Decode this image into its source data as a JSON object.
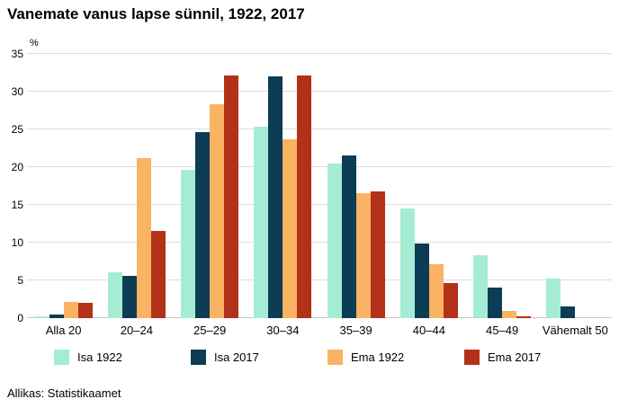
{
  "title": "Vanemate vanus lapse sünnil, 1922, 2017",
  "source": "Allikas: Statistikaamet",
  "chart_data": {
    "type": "bar",
    "title": "Vanemate vanus lapse sünnil, 1922, 2017",
    "unit": "%",
    "categories": [
      "Alla 20",
      "20–24",
      "25–29",
      "30–34",
      "35–39",
      "40–44",
      "45–49",
      "Vähemalt 50"
    ],
    "series": [
      {
        "name": "Isa 1922",
        "color": "#a5ecd5",
        "values": [
          0.2,
          6.1,
          19.7,
          25.4,
          20.5,
          14.5,
          8.3,
          5.2
        ]
      },
      {
        "name": "Isa 2017",
        "color": "#0d3c55",
        "values": [
          0.5,
          5.6,
          24.7,
          32.0,
          21.6,
          9.9,
          4.1,
          1.6
        ]
      },
      {
        "name": "Ema 1922",
        "color": "#fab263",
        "values": [
          2.2,
          21.2,
          28.3,
          23.7,
          16.5,
          7.1,
          0.9,
          0.0
        ]
      },
      {
        "name": "Ema 2017",
        "color": "#b33119",
        "values": [
          2.0,
          11.6,
          32.2,
          32.1,
          16.8,
          4.7,
          0.2,
          0.0
        ]
      }
    ],
    "ylim": [
      0,
      35
    ],
    "ytick_step": 5,
    "grid": true,
    "legend_position": "bottom",
    "colors": {
      "gridline": "#dcdcdc",
      "baseline": "#c6c6c6",
      "text": "#000000"
    }
  }
}
